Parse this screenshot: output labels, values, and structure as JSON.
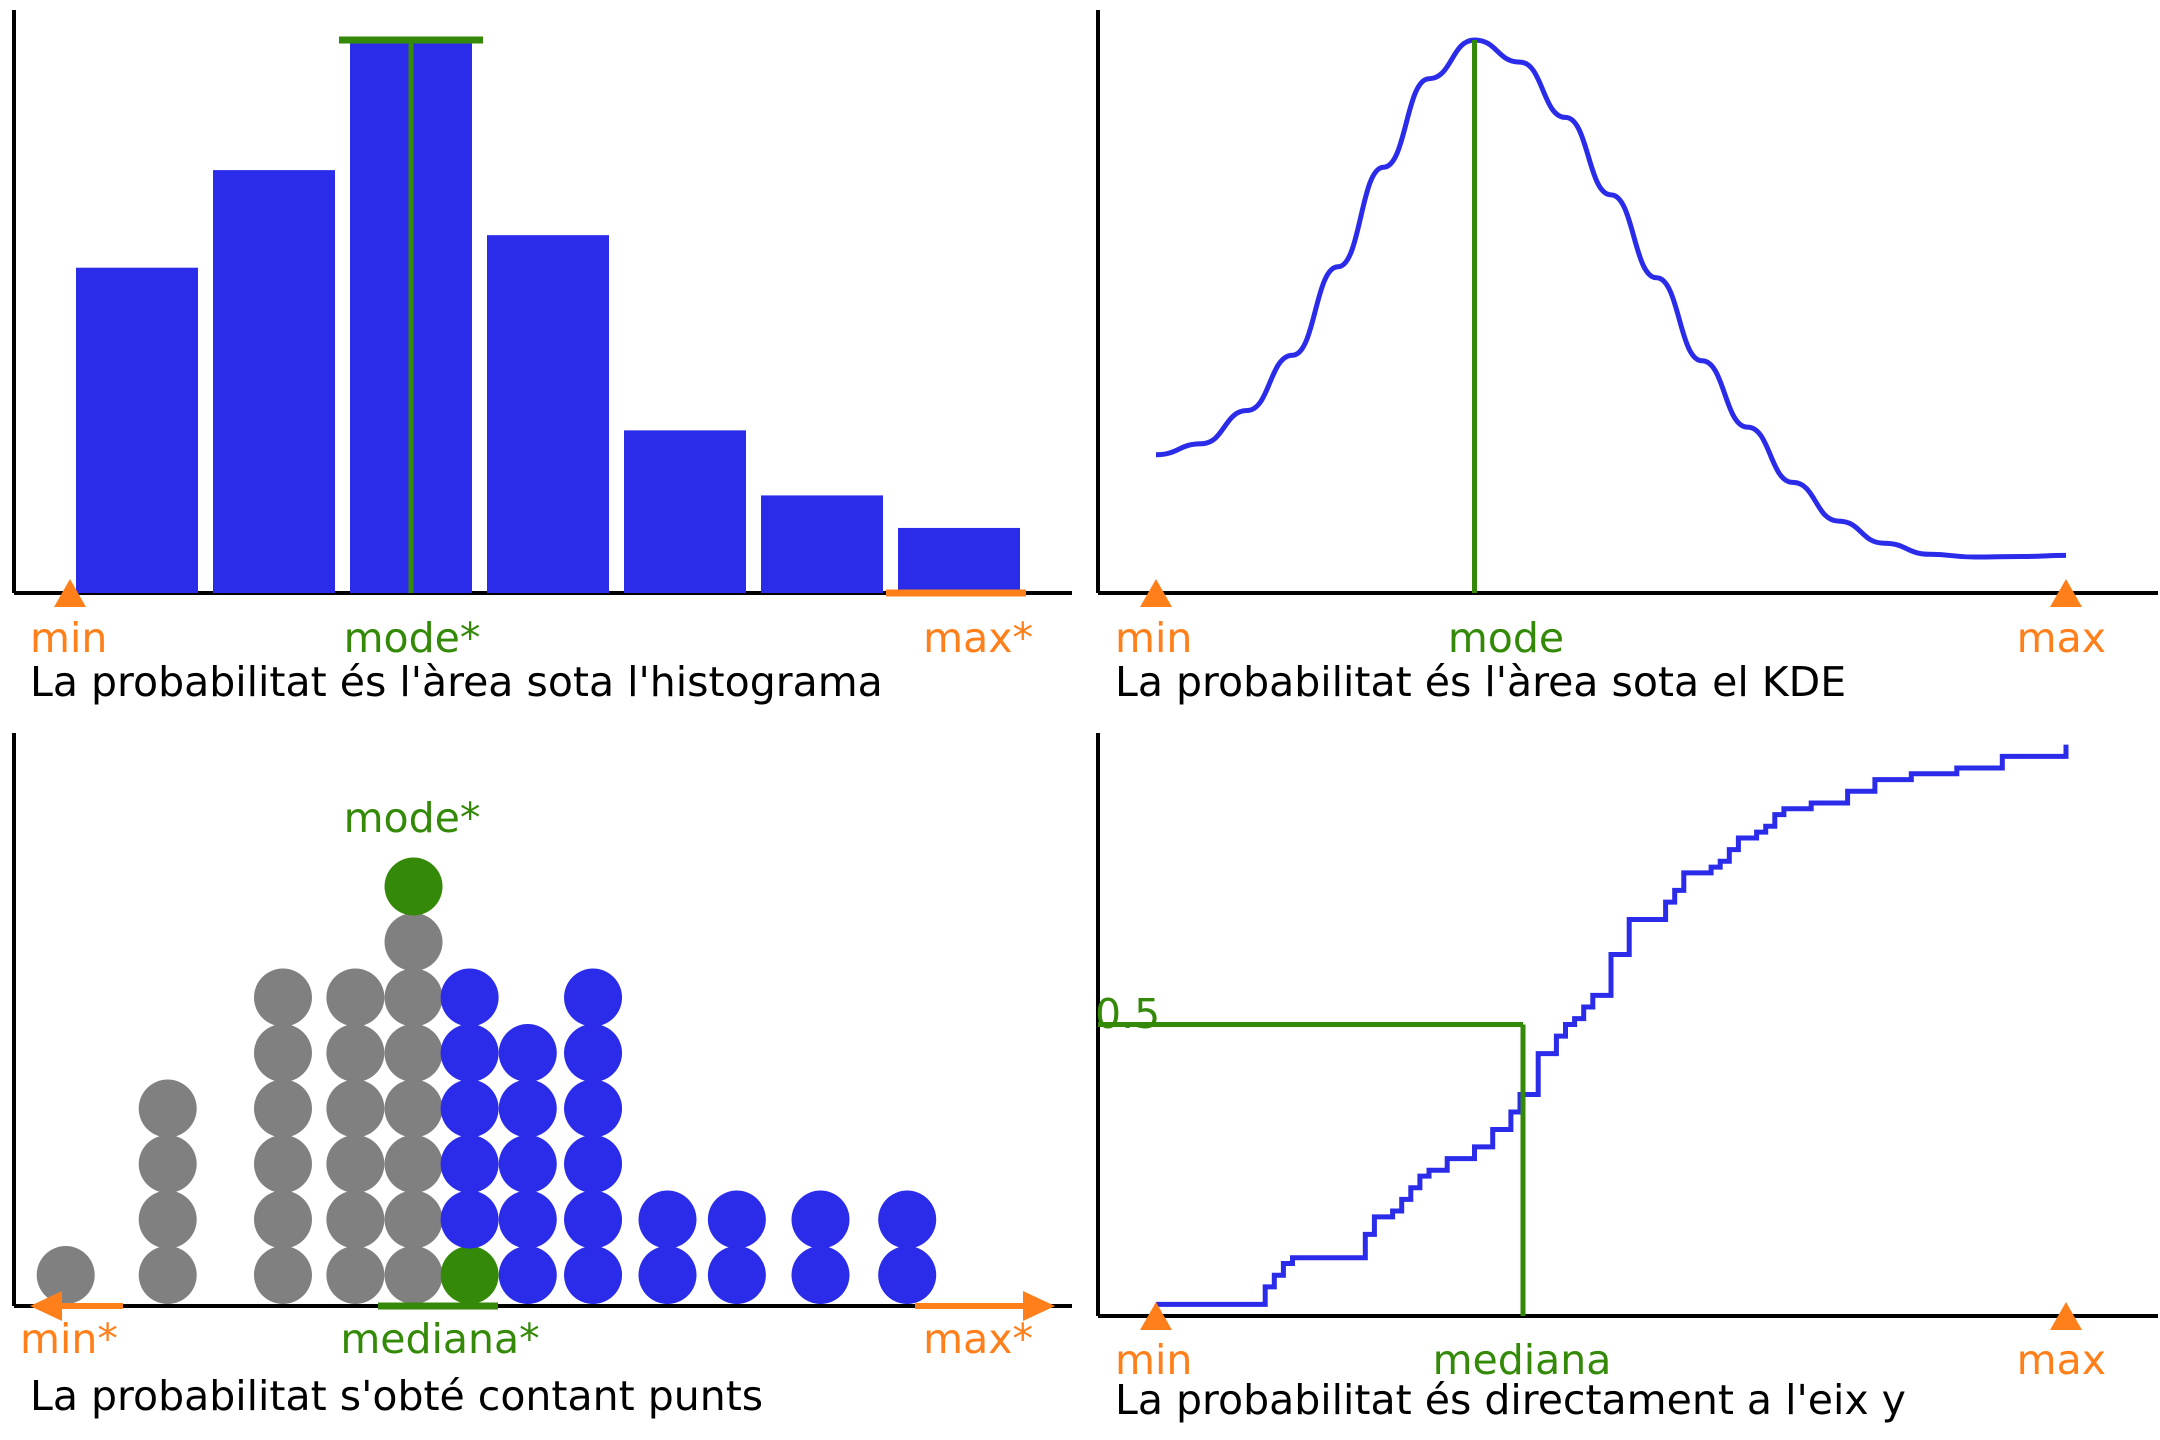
{
  "colors": {
    "bar": "#2b2bea",
    "gray": "#808080",
    "green": "#348a08",
    "orange": "#ff7f1a",
    "axis": "#000000"
  },
  "chart_data": [
    {
      "type": "bar",
      "panel": "top-left",
      "values": [
        2.0,
        2.6,
        3.4,
        2.2,
        1.0,
        0.6,
        0.4
      ],
      "markers": {
        "min": "min",
        "mode": "mode*",
        "max": "max*"
      },
      "caption": "La probabilitat és l'àrea sota l'histograma",
      "mode_index": 2,
      "grid": false
    },
    {
      "type": "line",
      "panel": "top-right",
      "x": [
        0,
        0.05,
        0.1,
        0.15,
        0.2,
        0.25,
        0.3,
        0.35,
        0.4,
        0.45,
        0.5,
        0.55,
        0.6,
        0.65,
        0.7,
        0.75,
        0.8,
        0.85,
        0.9,
        0.95,
        1.0
      ],
      "y": [
        0.25,
        0.27,
        0.33,
        0.43,
        0.59,
        0.77,
        0.93,
        1.0,
        0.96,
        0.86,
        0.72,
        0.57,
        0.42,
        0.3,
        0.2,
        0.13,
        0.09,
        0.07,
        0.065,
        0.066,
        0.068
      ],
      "markers": {
        "min": "min",
        "mode": "mode",
        "max": "max"
      },
      "caption": "La probabilitat és l'àrea sota el KDE",
      "grid": false
    },
    {
      "type": "scatter",
      "panel": "bottom-left",
      "columns": [
        {
          "x": 0.035,
          "count": 1,
          "color": "gray"
        },
        {
          "x": 0.135,
          "count": 4,
          "color": "gray"
        },
        {
          "x": 0.248,
          "count": 6,
          "color": "gray"
        },
        {
          "x": 0.319,
          "count": 6,
          "color": "gray"
        },
        {
          "x": 0.376,
          "count": 7,
          "color": "gray",
          "top_color": "green"
        },
        {
          "x": 0.431,
          "count": 6,
          "color": "blue",
          "bottom_color": "green"
        },
        {
          "x": 0.488,
          "count": 5,
          "color": "blue"
        },
        {
          "x": 0.552,
          "count": 6,
          "color": "blue"
        },
        {
          "x": 0.625,
          "count": 2,
          "color": "blue"
        },
        {
          "x": 0.693,
          "count": 2,
          "color": "blue"
        },
        {
          "x": 0.775,
          "count": 2,
          "color": "blue"
        },
        {
          "x": 0.86,
          "count": 2,
          "color": "blue"
        }
      ],
      "markers": {
        "min": "min*",
        "mode": "mode*",
        "median": "mediana*",
        "max": "max*"
      },
      "caption": "La probabilitat s'obté contant punts",
      "grid": false
    },
    {
      "type": "line",
      "panel": "bottom-right",
      "step": true,
      "x": [
        0,
        0.12,
        0.13,
        0.14,
        0.15,
        0.23,
        0.24,
        0.26,
        0.27,
        0.28,
        0.29,
        0.3,
        0.32,
        0.35,
        0.37,
        0.39,
        0.4,
        0.42,
        0.44,
        0.45,
        0.46,
        0.47,
        0.48,
        0.5,
        0.52,
        0.56,
        0.57,
        0.58,
        0.61,
        0.62,
        0.63,
        0.64,
        0.66,
        0.67,
        0.68,
        0.69,
        0.72,
        0.76,
        0.79,
        0.83,
        0.88,
        0.93,
        1.0
      ],
      "y": [
        0.02,
        0.05,
        0.07,
        0.09,
        0.1,
        0.14,
        0.17,
        0.18,
        0.2,
        0.22,
        0.24,
        0.25,
        0.27,
        0.29,
        0.32,
        0.35,
        0.38,
        0.45,
        0.48,
        0.5,
        0.51,
        0.53,
        0.55,
        0.62,
        0.68,
        0.71,
        0.73,
        0.76,
        0.77,
        0.78,
        0.8,
        0.82,
        0.83,
        0.84,
        0.86,
        0.87,
        0.88,
        0.9,
        0.92,
        0.93,
        0.94,
        0.96,
        0.98
      ],
      "y_marker_label": "0.5",
      "markers": {
        "min": "min",
        "median": "mediana",
        "max": "max"
      },
      "caption": "La probabilitat és directament a l'eix y",
      "grid": false
    }
  ]
}
